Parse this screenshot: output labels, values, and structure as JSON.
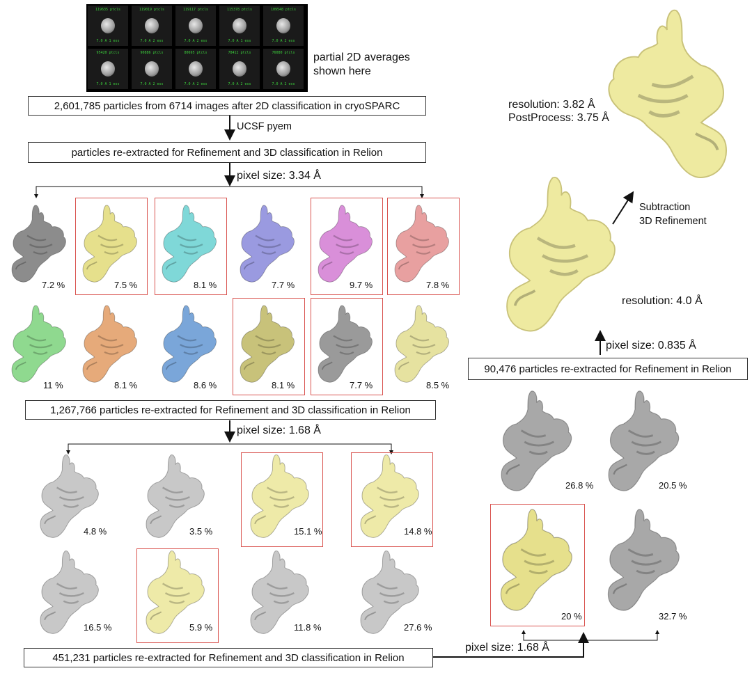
{
  "class2d": {
    "thumbs": [
      {
        "top": "119635 ptcls",
        "bottom": "7.0 A 1 ess"
      },
      {
        "top": "119019 ptcls",
        "bottom": "7.0 A 2 ess"
      },
      {
        "top": "119117 ptcls",
        "bottom": "7.0 A 2 ess"
      },
      {
        "top": "115378 ptcls",
        "bottom": "7.0 A 1 ess"
      },
      {
        "top": "109548 ptcls",
        "bottom": "7.0 A 2 ess"
      },
      {
        "top": "95420 ptcls",
        "bottom": "7.0 A 1 ess"
      },
      {
        "top": "90886 ptcls",
        "bottom": "7.0 A 2 ess"
      },
      {
        "top": "80695 ptcls",
        "bottom": "7.0 A 2 ess"
      },
      {
        "top": "78412 ptcls",
        "bottom": "7.0 A 2 ess"
      },
      {
        "top": "76080 ptcls",
        "bottom": "7.0 A 2 ess"
      }
    ],
    "note_line1": "partial 2D averages",
    "note_line2": "shown here"
  },
  "steps": {
    "box1": "2,601,785 particles from 6714 images after 2D classification in cryoSPARC",
    "arrow1": "UCSF pyem",
    "box2": "particles re-extracted for Refinement and 3D classification in Relion",
    "arrow2": "pixel size: 3.34 Å",
    "box3": "1,267,766 particles re-extracted for Refinement and 3D classification in Relion",
    "arrow3": "pixel size: 1.68 Å",
    "box4": "451,231 particles re-extracted for Refinement and 3D classification in Relion",
    "arrow4": "pixel size: 1.68 Å",
    "box5": "90,476 particles re-extracted for Refinement in Relion",
    "arrow5": "pixel size: 0.835 Å",
    "res1": "resolution: 4.0 Å",
    "sub_line1": "Subtraction",
    "sub_line2": "3D Refinement",
    "final_res": "resolution: 3.82 Å",
    "final_pp": "PostProcess: 3.75 Å"
  },
  "round1": [
    {
      "pct": "7.2 %",
      "color": "#8c8c8c",
      "selected": false
    },
    {
      "pct": "7.5 %",
      "color": "#e6e08c",
      "selected": true
    },
    {
      "pct": "8.1 %",
      "color": "#7fd8d8",
      "selected": true
    },
    {
      "pct": "7.7 %",
      "color": "#9a9ae0",
      "selected": false
    },
    {
      "pct": "9.7 %",
      "color": "#d98fd9",
      "selected": true
    },
    {
      "pct": "7.8 %",
      "color": "#e8a0a0",
      "selected": true
    },
    {
      "pct": "11 %",
      "color": "#8fd98f",
      "selected": false
    },
    {
      "pct": "8.1 %",
      "color": "#e6aa7a",
      "selected": false
    },
    {
      "pct": "8.6 %",
      "color": "#7aa6d9",
      "selected": false
    },
    {
      "pct": "8.1 %",
      "color": "#c8c27a",
      "selected": true
    },
    {
      "pct": "7.7 %",
      "color": "#9a9a9a",
      "selected": true
    },
    {
      "pct": "8.5 %",
      "color": "#e6e2a0",
      "selected": false
    }
  ],
  "round2": [
    {
      "pct": "4.8 %",
      "color": "#c8c8c8",
      "selected": false
    },
    {
      "pct": "3.5 %",
      "color": "#c8c8c8",
      "selected": false
    },
    {
      "pct": "15.1 %",
      "color": "#eeeaa8",
      "selected": true
    },
    {
      "pct": "14.8 %",
      "color": "#eeeaa8",
      "selected": true
    },
    {
      "pct": "16.5 %",
      "color": "#c8c8c8",
      "selected": false
    },
    {
      "pct": "5.9 %",
      "color": "#eeeaa8",
      "selected": true
    },
    {
      "pct": "11.8 %",
      "color": "#c8c8c8",
      "selected": false
    },
    {
      "pct": "27.6 %",
      "color": "#c8c8c8",
      "selected": false
    }
  ],
  "round3": [
    {
      "pct": "26.8 %",
      "color": "#a8a8a8",
      "selected": false
    },
    {
      "pct": "20.5 %",
      "color": "#a8a8a8",
      "selected": false
    },
    {
      "pct": "20 %",
      "color": "#e6e08c",
      "selected": true
    },
    {
      "pct": "32.7 %",
      "color": "#a8a8a8",
      "selected": false
    }
  ],
  "map_colors": {
    "yellow": "#eeeaa0",
    "red_frame": "#d9534f"
  }
}
